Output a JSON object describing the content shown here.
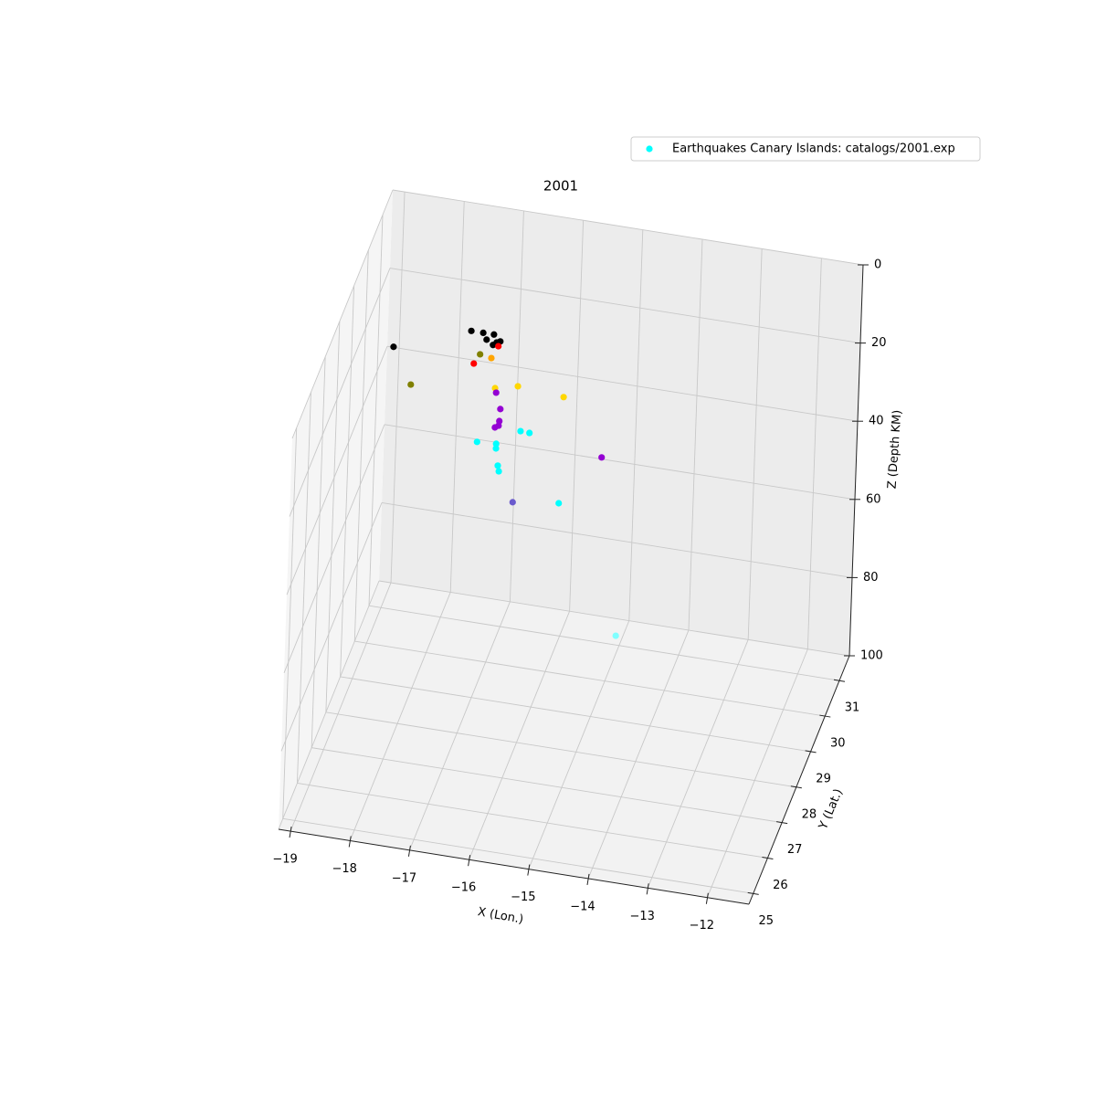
{
  "chart_data": {
    "type": "scatter3d",
    "title": "2001",
    "xlabel": "X (Lon.)",
    "ylabel": "Y (Lat.)",
    "zlabel": "Z (Depth KM)",
    "xlim": [
      -19.2,
      -11.3
    ],
    "ylim": [
      24.7,
      31.7
    ],
    "zlim": [
      0,
      100
    ],
    "z_inverted": true,
    "xticks": [
      {
        "value": -19,
        "label": "−19"
      },
      {
        "value": -18,
        "label": "−18"
      },
      {
        "value": -17,
        "label": "−17"
      },
      {
        "value": -16,
        "label": "−16"
      },
      {
        "value": -15,
        "label": "−15"
      },
      {
        "value": -14,
        "label": "−14"
      },
      {
        "value": -13,
        "label": "−13"
      },
      {
        "value": -12,
        "label": "−12"
      }
    ],
    "yticks": [
      25,
      26,
      27,
      28,
      29,
      30,
      31
    ],
    "zticks": [
      0,
      20,
      40,
      60,
      80,
      100
    ],
    "grid": true,
    "legend_loc": "upper right",
    "series": [
      {
        "name": "Earthquakes Canary Islands: catalogs/2001.exp",
        "color": "#00ffff",
        "x": [
          -18.35,
          -17.06,
          -16.86,
          -16.68,
          -16.8,
          -16.63,
          -16.57,
          -16.69,
          -16.6,
          -17.0,
          -16.9,
          -18.04,
          -16.71,
          -16.25,
          -16.63,
          -15.48,
          -16.61,
          -16.53,
          -16.54,
          -16.55,
          -16.61,
          -14.81,
          -16.18,
          -16.03,
          -16.9,
          -16.58,
          -16.58,
          -16.54,
          -16.52,
          -15.5,
          -16.27,
          -14.47
        ],
        "y": [
          28.3,
          28.3,
          28.3,
          28.3,
          28.3,
          28.3,
          28.3,
          28.3,
          28.3,
          28.3,
          28.3,
          28.3,
          28.3,
          28.3,
          28.3,
          28.3,
          28.3,
          28.3,
          28.3,
          28.3,
          28.3,
          28.3,
          28.3,
          28.3,
          28.3,
          28.3,
          28.3,
          28.3,
          28.3,
          28.3,
          28.3,
          28.3
        ],
        "z": [
          7.2,
          0,
          0,
          0,
          1.6,
          1.9,
          1.5,
          2.7,
          2.8,
          8.2,
          5.6,
          16.1,
          6.1,
          12.2,
          13.6,
          13.1,
          14.7,
          18.7,
          21.8,
          23.0,
          23.6,
          26.9,
          23.5,
          23.6,
          28.0,
          27.7,
          28.9,
          33.2,
          34.6,
          40.3,
          41.9,
          71.7
        ],
        "colors": [
          "#000000",
          "#000000",
          "#000000",
          "#000000",
          "#000000",
          "#000000",
          "#000000",
          "#000000",
          "#ff0000",
          "#ff0000",
          "#808000",
          "#808000",
          "#ffa500",
          "#ffd700",
          "#ffd700",
          "#ffd700",
          "#9400d3",
          "#9400d3",
          "#9400d3",
          "#9400d3",
          "#9400d3",
          "#9400d3",
          "#00ffff",
          "#00ffff",
          "#00ffff",
          "#00ffff",
          "#00ffff",
          "#00ffff",
          "#00ffff",
          "#00ffff",
          "#6a5acd",
          "#80ffff"
        ]
      }
    ]
  }
}
